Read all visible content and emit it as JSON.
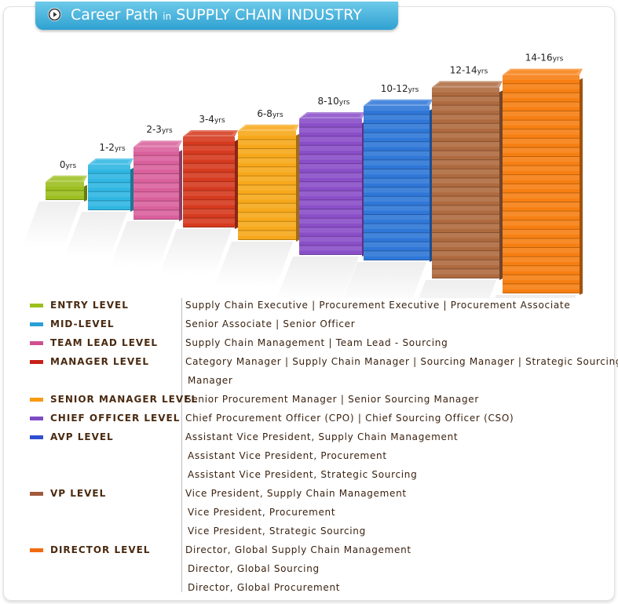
{
  "header": {
    "title_part1": "Career Path",
    "title_part2": "in",
    "title_part3": "SUPPLY CHAIN INDUSTRY"
  },
  "chart_data": {
    "type": "bar",
    "categories": [
      "0yrs",
      "1-2yrs",
      "2-3yrs",
      "3-4yrs",
      "6-8yrs",
      "8-10yrs",
      "10-12yrs",
      "12-14yrs",
      "14-16yrs"
    ],
    "values": [
      2,
      5,
      8,
      10,
      12,
      15,
      17,
      21,
      24
    ],
    "tick_labels": [
      {
        "num": "0",
        "unit": "yrs"
      },
      {
        "num": "1-2",
        "unit": "yrs"
      },
      {
        "num": "2-3",
        "unit": "yrs"
      },
      {
        "num": "3-4",
        "unit": "yrs"
      },
      {
        "num": "6-8",
        "unit": "yrs"
      },
      {
        "num": "8-10",
        "unit": "yrs"
      },
      {
        "num": "10-12",
        "unit": "yrs"
      },
      {
        "num": "12-14",
        "unit": "yrs"
      },
      {
        "num": "14-16",
        "unit": "yrs"
      }
    ],
    "colors": [
      "#9cbf1e",
      "#2fb6e2",
      "#d9609c",
      "#d63a1f",
      "#f7a81a",
      "#8a4fc8",
      "#2f77d8",
      "#ae6a3f",
      "#f77f12"
    ]
  },
  "legend": [
    {
      "label": "ENTRY LEVEL",
      "color": "#9cbf1e",
      "lines": [
        "Supply Chain Executive | Procurement Executive | Procurement Associate"
      ]
    },
    {
      "label": "MID-LEVEL",
      "color": "#2b9fd6",
      "lines": [
        "Senior Associate | Senior Officer"
      ]
    },
    {
      "label": "TEAM LEAD LEVEL",
      "color": "#d0508f",
      "lines": [
        "Supply Chain Management | Team Lead - Sourcing"
      ]
    },
    {
      "label": "MANAGER LEVEL",
      "color": "#c62018",
      "lines": [
        "Category Manager | Supply Chain Manager | Sourcing Manager | Strategic Sourcing",
        "Manager"
      ]
    },
    {
      "label": "SENIOR MANAGER LEVEL",
      "color": "#f79a14",
      "lines": [
        "Senior Procurement Manager | Senior Sourcing Manager"
      ]
    },
    {
      "label": "CHIEF OFFICER LEVEL",
      "color": "#7d4cc4",
      "lines": [
        "Chief Procurement Officer (CPO) | Chief Sourcing Officer (CSO)"
      ]
    },
    {
      "label": "AVP LEVEL",
      "color": "#2f4fd0",
      "lines": [
        "Assistant Vice President, Supply Chain Management",
        "Assistant Vice President, Procurement",
        "Assistant Vice President, Strategic Sourcing"
      ]
    },
    {
      "label": "VP LEVEL",
      "color": "#a05a3c",
      "lines": [
        "Vice President, Supply Chain Management",
        "Vice President, Procurement",
        "Vice President, Strategic Sourcing"
      ]
    },
    {
      "label": "DIRECTOR LEVEL",
      "color": "#f26a10",
      "lines": [
        "Director, Global Supply Chain Management",
        "Director, Global Sourcing",
        "Director, Global Procurement"
      ]
    }
  ]
}
